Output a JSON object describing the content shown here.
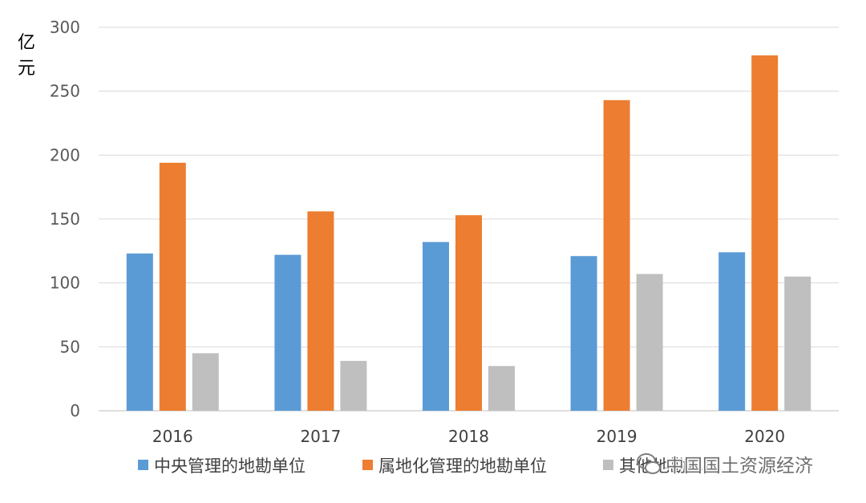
{
  "chart_data": {
    "type": "bar",
    "categories": [
      "2016",
      "2017",
      "2018",
      "2019",
      "2020"
    ],
    "series": [
      {
        "name": "中央管理的地勘单位",
        "values": [
          123,
          122,
          132,
          121,
          124
        ],
        "color": "#5b9bd5"
      },
      {
        "name": "属地化管理的地勘单位",
        "values": [
          194,
          156,
          153,
          243,
          278
        ],
        "color": "#ed7d31"
      },
      {
        "name": "其他地勘单位",
        "values": [
          45,
          39,
          35,
          107,
          105
        ],
        "color": "#bfbfbf"
      }
    ],
    "ylabel": "亿元",
    "ylim": [
      0,
      300
    ],
    "yticks": [
      0,
      50,
      100,
      150,
      200,
      250,
      300
    ],
    "grid": true,
    "legend_position": "bottom"
  },
  "watermark": {
    "text": "中国国土资源经济"
  }
}
